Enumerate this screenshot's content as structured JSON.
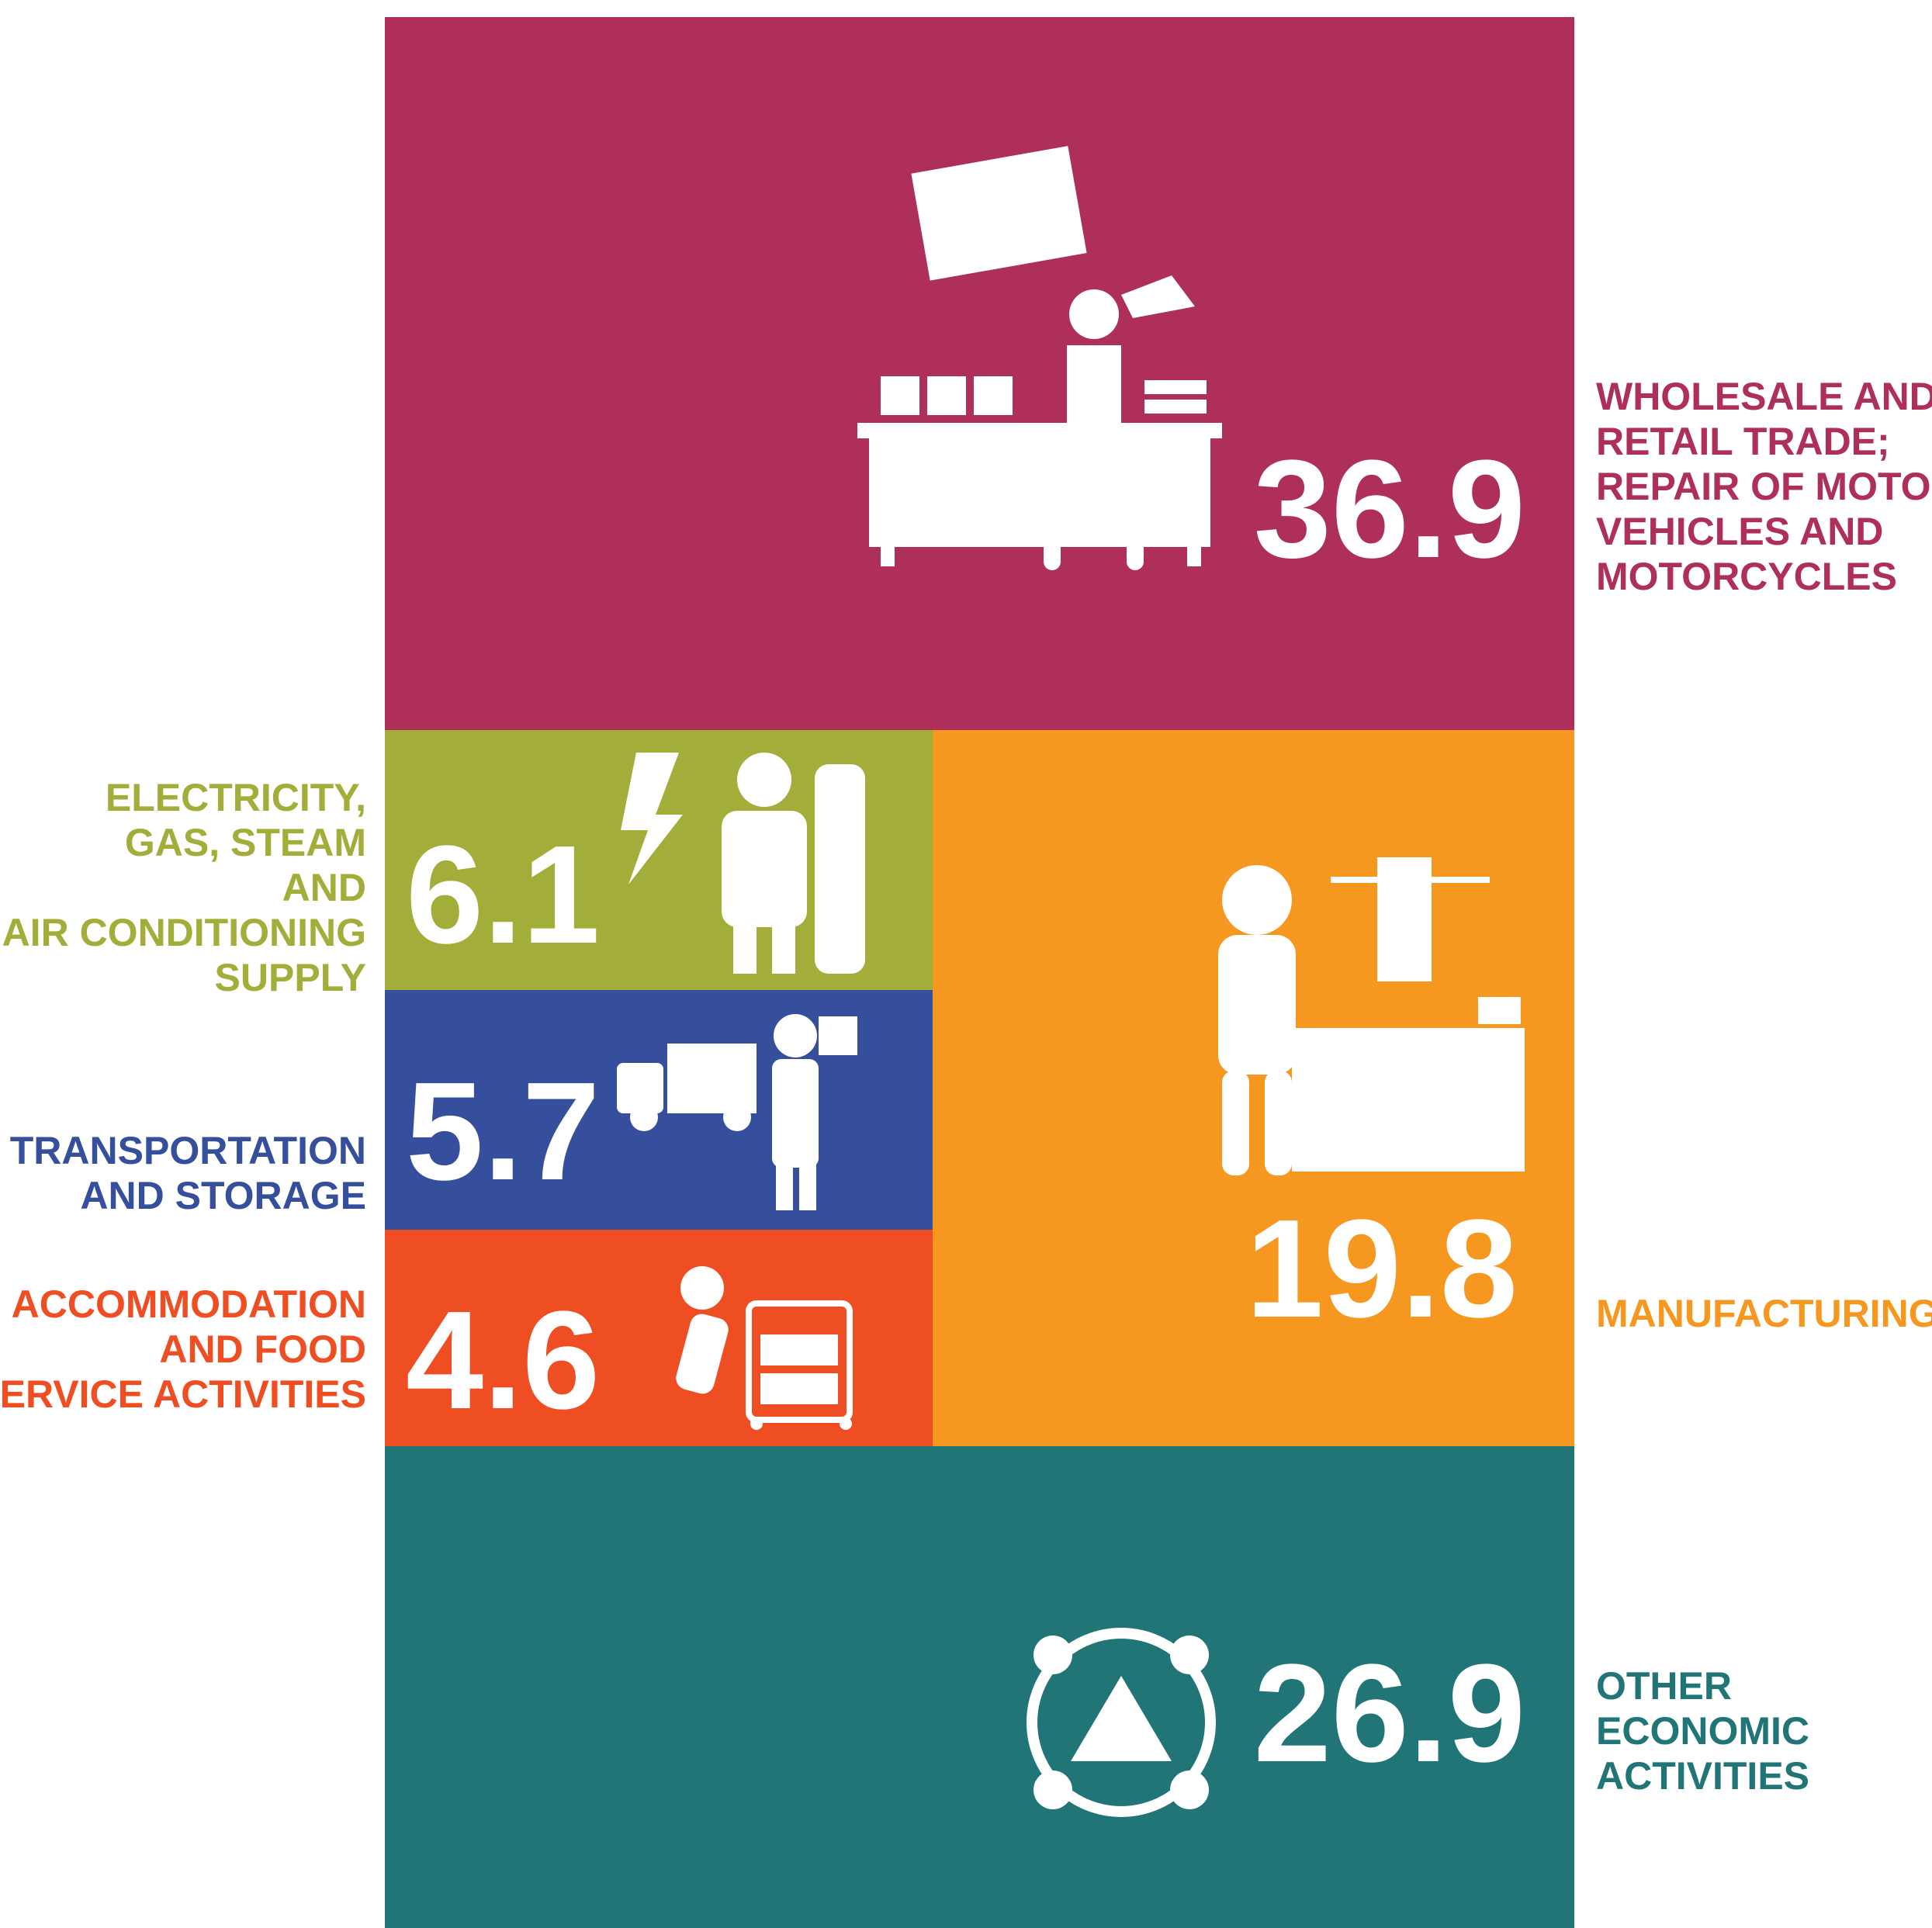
{
  "chart_data": {
    "type": "treemap",
    "categories": [
      [
        "WHOLESALE AND",
        "RETAIL TRADE;",
        "REPAIR OF MOTOR",
        "VEHICLES AND",
        "MOTORCYCLES"
      ],
      [
        "ELECTRICITY,",
        "GAS, STEAM",
        "AND",
        "AIR CONDITIONING",
        "SUPPLY"
      ],
      [
        "TRANSPORTATION",
        "AND STORAGE"
      ],
      [
        "ACCOMMODATION",
        "AND FOOD",
        "SERVICE ACTIVITIES"
      ],
      [
        "MANUFACTURING"
      ],
      [
        "OTHER",
        "ECONOMIC",
        "ACTIVITIES"
      ]
    ],
    "values": [
      36.9,
      6.1,
      5.7,
      4.6,
      19.8,
      26.9
    ],
    "colors": [
      "#ae2f5a",
      "#a3ad39",
      "#364f9c",
      "#ef4e23",
      "#f6981f",
      "#217576"
    ]
  }
}
